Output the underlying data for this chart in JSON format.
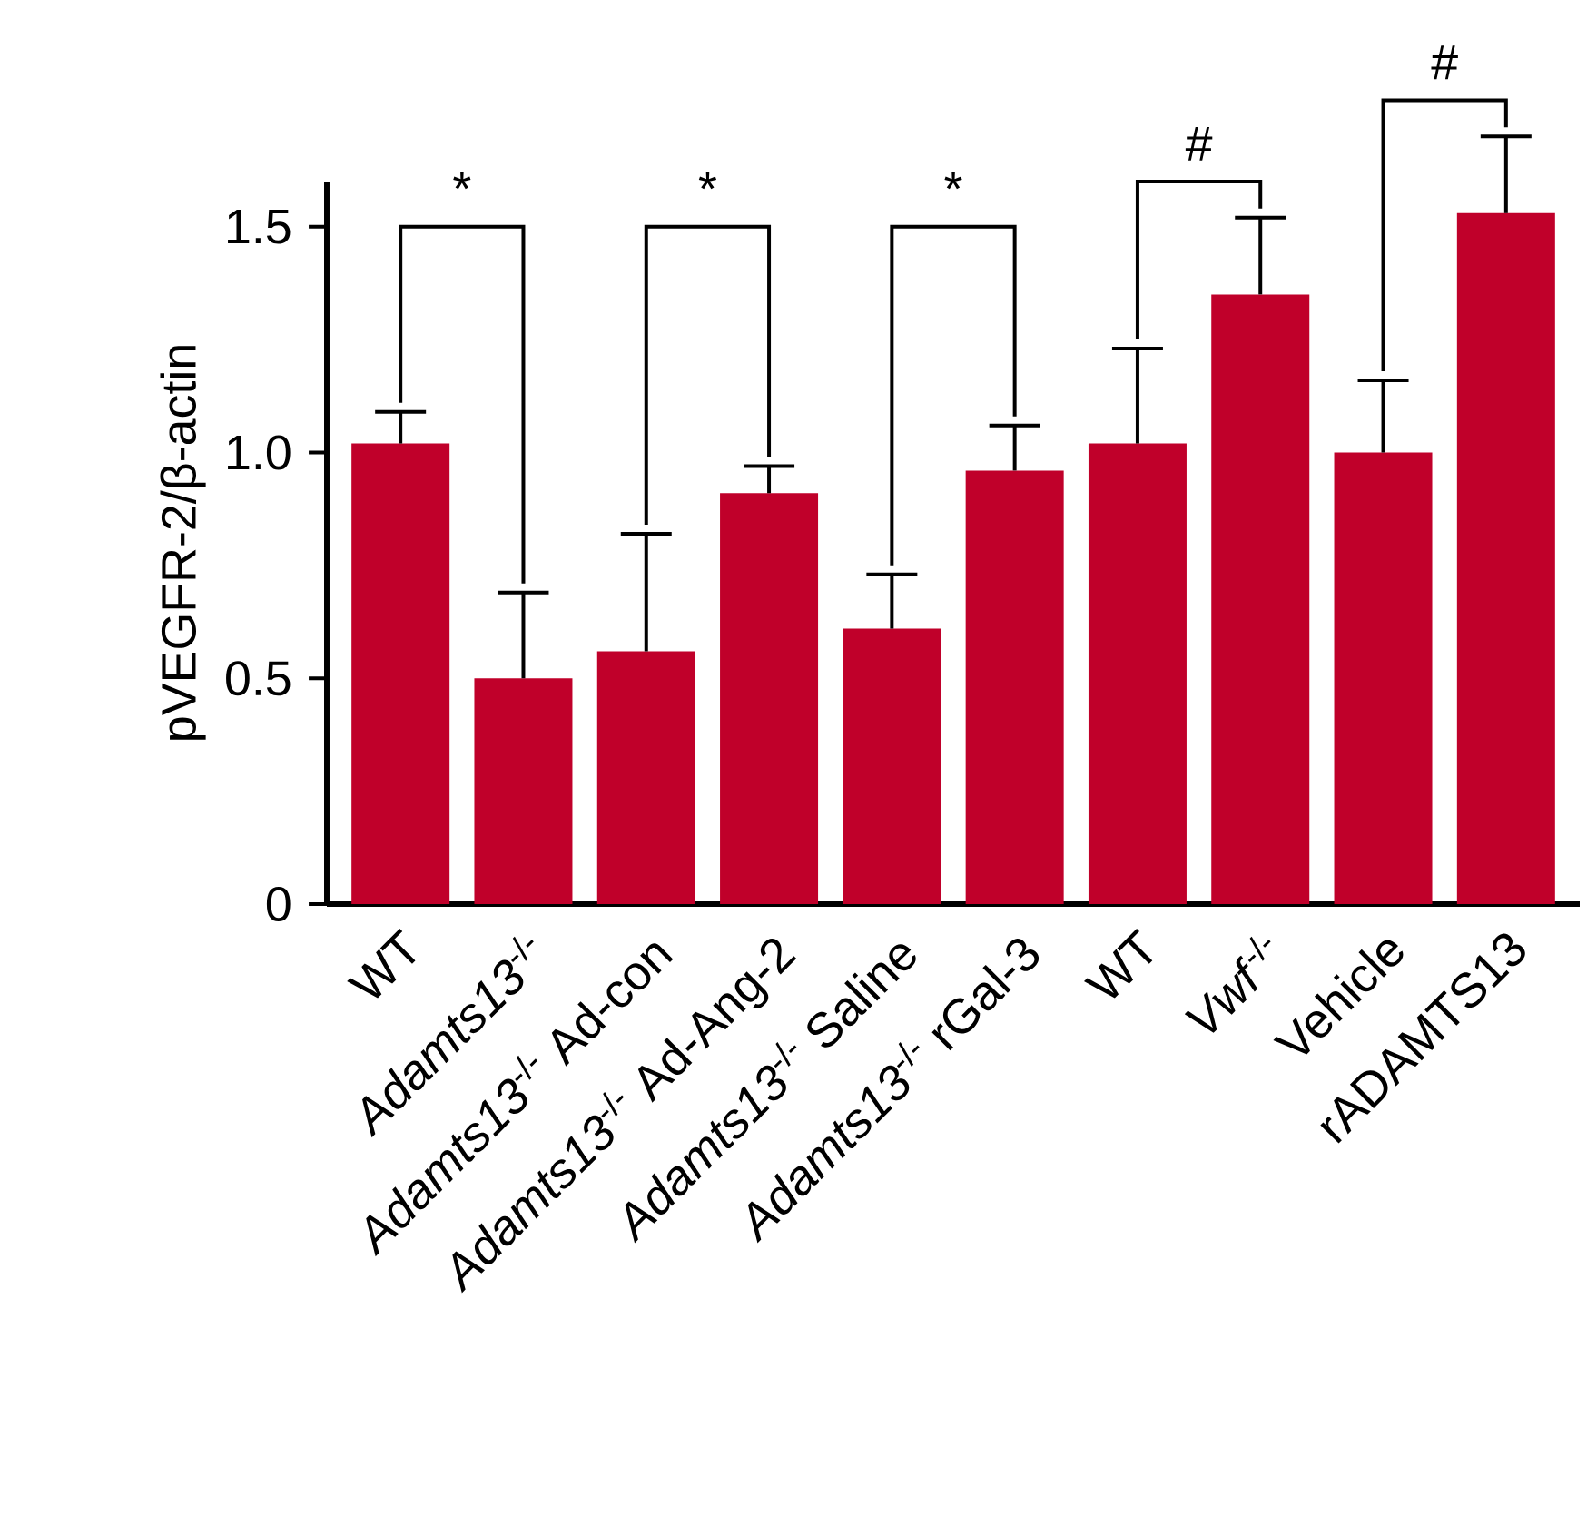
{
  "chart_data": {
    "type": "bar",
    "ylabel": "pVEGFR-2/β-actin",
    "categories": [
      "WT",
      "*Adamts13*$^{-/-}$",
      "*Adamts13*$^{-/-}$ Ad-con",
      "*Adamts13*$^{-/-}$ Ad-Ang-2",
      "*Adamts13*$^{-/-}$ Saline",
      "*Adamts13*$^{-/-}$ rGal-3",
      "WT",
      "*Vwf*$^{-/-}$",
      "Vehicle",
      "rADAMTS13"
    ],
    "values": [
      1.02,
      0.5,
      0.56,
      0.91,
      0.61,
      0.96,
      1.02,
      1.35,
      1.0,
      1.53
    ],
    "errors": [
      [
        1.02,
        1.09
      ],
      [
        0.5,
        0.69
      ],
      [
        0.56,
        0.82
      ],
      [
        0.91,
        0.97
      ],
      [
        0.61,
        0.73
      ],
      [
        0.96,
        1.06
      ],
      [
        1.02,
        1.23
      ],
      [
        1.35,
        1.52
      ],
      [
        1.0,
        1.16
      ],
      [
        1.53,
        1.7
      ]
    ],
    "color": "#c0002a",
    "ylim": [
      0,
      1.6
    ],
    "yticks": [
      0,
      0.5,
      {
        "value": 1.0,
        "label": "1.0"
      },
      1.5
    ],
    "annotations": [
      "*",
      "*",
      "*",
      "#",
      "#"
    ]
  }
}
